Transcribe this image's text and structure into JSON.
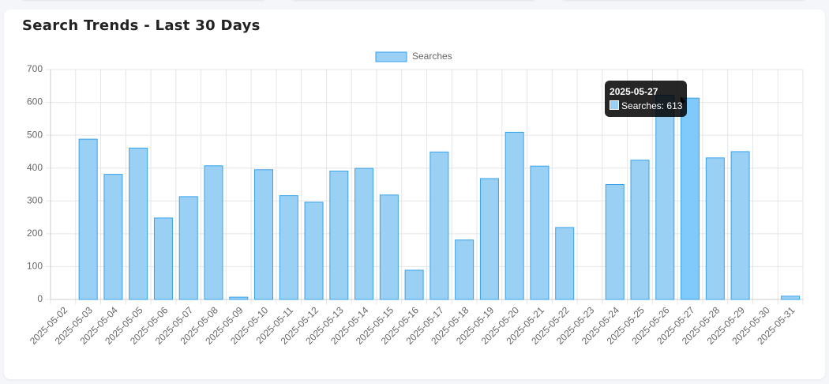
{
  "chart_data": {
    "type": "bar",
    "title": "Search Trends - Last 30 Days",
    "categories": [
      "2025-05-02",
      "2025-05-03",
      "2025-05-04",
      "2025-05-05",
      "2025-05-06",
      "2025-05-07",
      "2025-05-08",
      "2025-05-09",
      "2025-05-10",
      "2025-05-11",
      "2025-05-12",
      "2025-05-13",
      "2025-05-14",
      "2025-05-15",
      "2025-05-16",
      "2025-05-17",
      "2025-05-18",
      "2025-05-19",
      "2025-05-20",
      "2025-05-21",
      "2025-05-22",
      "2025-05-23",
      "2025-05-24",
      "2025-05-25",
      "2025-05-26",
      "2025-05-27",
      "2025-05-28",
      "2025-05-29",
      "2025-05-30",
      "2025-05-31"
    ],
    "series": [
      {
        "name": "Searches",
        "color": "#36a2eb",
        "values": [
          0,
          488,
          381,
          461,
          248,
          313,
          407,
          7,
          395,
          316,
          296,
          391,
          399,
          318,
          89,
          449,
          181,
          368,
          509,
          406,
          219,
          0,
          350,
          424,
          622,
          613,
          431,
          450,
          0,
          10
        ]
      }
    ],
    "ylim": [
      0,
      700
    ],
    "yticks": [
      0,
      100,
      200,
      300,
      400,
      500,
      600,
      700
    ],
    "grid": true,
    "tooltip_index": 25
  }
}
